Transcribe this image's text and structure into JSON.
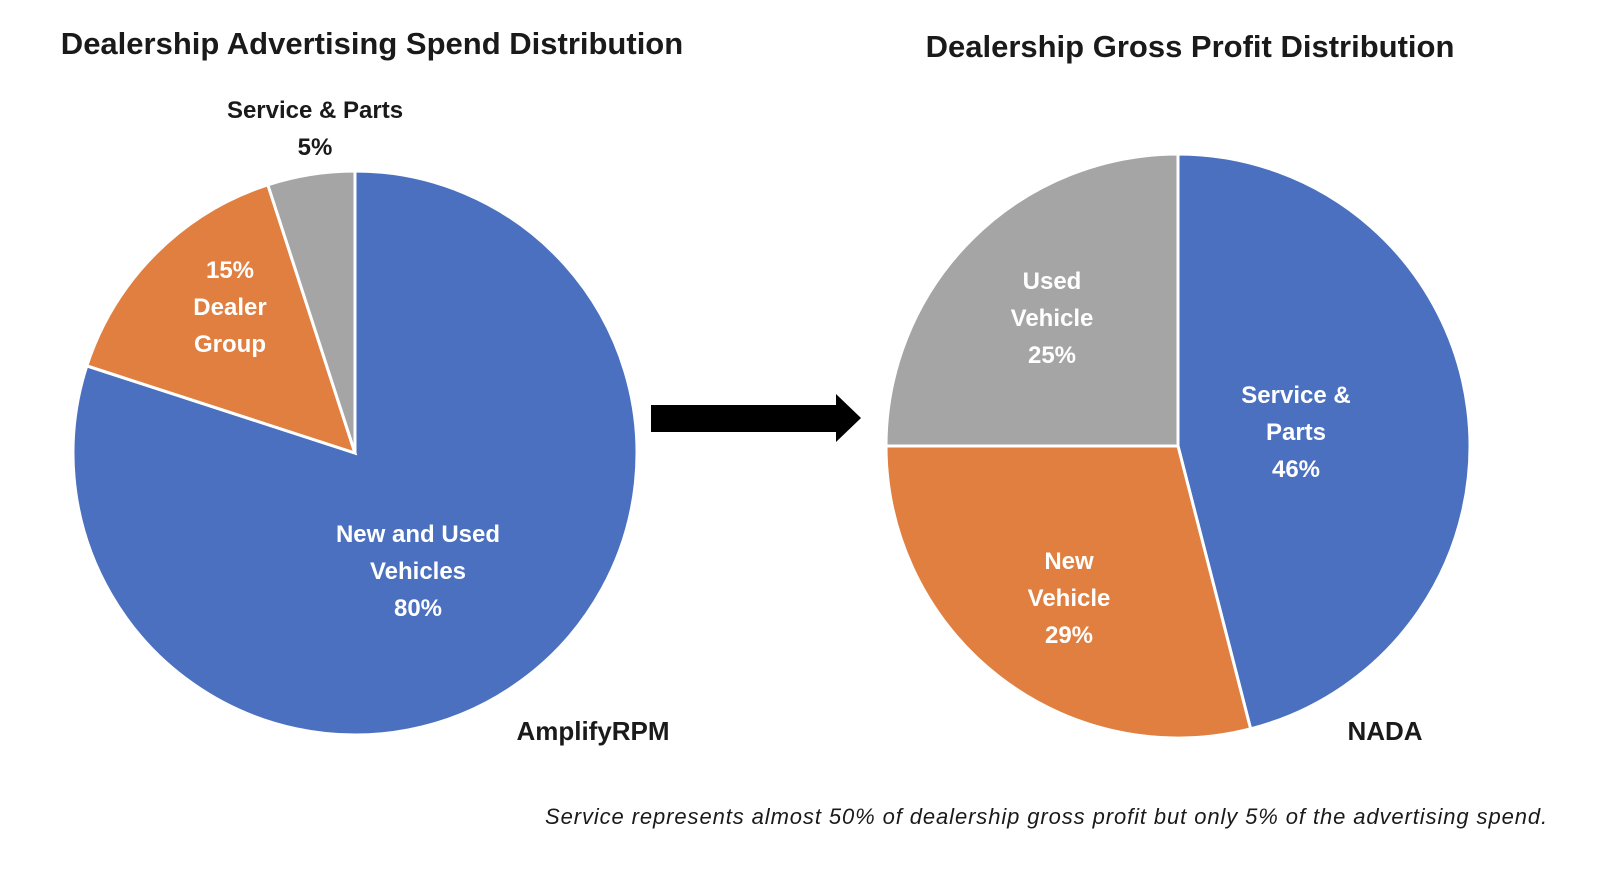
{
  "chart_data": [
    {
      "type": "pie",
      "title": "Dealership Advertising Spend Distribution",
      "source": "AmplifyRPM",
      "start_angle": "12 o'clock, clockwise",
      "slices": [
        {
          "label": [
            "New and Used",
            "Vehicles",
            "80%"
          ],
          "name": "New and Used Vehicles",
          "value": 80,
          "color": "#4a70bf"
        },
        {
          "label": [
            "15%",
            "Dealer",
            "Group"
          ],
          "name": "Dealer Group",
          "value": 15,
          "color": "#e07f40"
        },
        {
          "label": [
            "Service & Parts",
            "5%"
          ],
          "name": "Service & Parts",
          "value": 5,
          "color": "#a5a5a5"
        }
      ]
    },
    {
      "type": "pie",
      "title": "Dealership Gross Profit Distribution",
      "source": "NADA",
      "start_angle": "12 o'clock, clockwise",
      "slices": [
        {
          "label": [
            "Service &",
            "Parts",
            "46%"
          ],
          "name": "Service & Parts",
          "value": 46,
          "color": "#4a70bf"
        },
        {
          "label": [
            "New",
            "Vehicle",
            "29%"
          ],
          "name": "New Vehicle",
          "value": 29,
          "color": "#e07f40"
        },
        {
          "label": [
            "Used",
            "Vehicle",
            "25%"
          ],
          "name": "Used Vehicle",
          "value": 25,
          "color": "#a5a5a5"
        }
      ]
    }
  ],
  "arrow": {
    "direction": "right",
    "color": "#000000"
  },
  "footnote": "Service represents almost 50% of dealership gross profit but only 5% of the advertising spend."
}
